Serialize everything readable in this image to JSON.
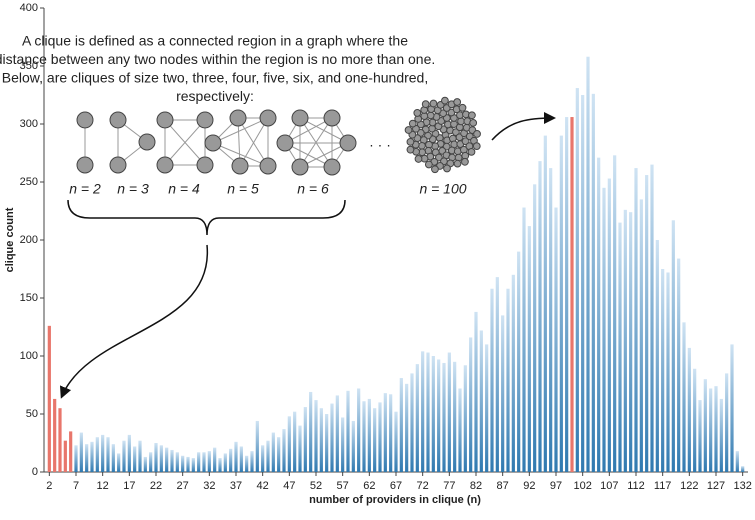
{
  "chart_data": {
    "type": "bar",
    "x": [
      2,
      3,
      4,
      5,
      6,
      7,
      8,
      9,
      10,
      11,
      12,
      13,
      14,
      15,
      16,
      17,
      18,
      19,
      20,
      21,
      22,
      23,
      24,
      25,
      26,
      27,
      28,
      29,
      30,
      31,
      32,
      33,
      34,
      35,
      36,
      37,
      38,
      39,
      40,
      41,
      42,
      43,
      44,
      45,
      46,
      47,
      48,
      49,
      50,
      51,
      52,
      53,
      54,
      55,
      56,
      57,
      58,
      59,
      60,
      61,
      62,
      63,
      64,
      65,
      66,
      67,
      68,
      69,
      70,
      71,
      72,
      73,
      74,
      75,
      76,
      77,
      78,
      79,
      80,
      81,
      82,
      83,
      84,
      85,
      86,
      87,
      88,
      89,
      90,
      91,
      92,
      93,
      94,
      95,
      96,
      97,
      98,
      99,
      100,
      101,
      102,
      103,
      104,
      105,
      106,
      107,
      108,
      109,
      110,
      111,
      112,
      113,
      114,
      115,
      116,
      117,
      118,
      119,
      120,
      121,
      122,
      123,
      124,
      125,
      126,
      127,
      128,
      129,
      130,
      131,
      132
    ],
    "series": [
      {
        "name": "clique count",
        "color": "#7fb3dd",
        "values": [
          126,
          63,
          55,
          27,
          35,
          23,
          34,
          24,
          26,
          30,
          32,
          30,
          24,
          16,
          27,
          32,
          22,
          27,
          13,
          17,
          25,
          23,
          21,
          19,
          17,
          14,
          13,
          12,
          17,
          17,
          18,
          21,
          12,
          16,
          20,
          26,
          22,
          14,
          18,
          44,
          23,
          27,
          34,
          30,
          37,
          48,
          52,
          40,
          56,
          69,
          62,
          55,
          50,
          59,
          66,
          47,
          70,
          44,
          72,
          61,
          63,
          55,
          60,
          68,
          67,
          52,
          81,
          76,
          85,
          93,
          104,
          103,
          100,
          97,
          94,
          103,
          95,
          72,
          92,
          116,
          138,
          122,
          110,
          158,
          168,
          135,
          158,
          170,
          190,
          228,
          212,
          248,
          268,
          290,
          262,
          228,
          290,
          306,
          306,
          331,
          325,
          358,
          326,
          271,
          245,
          253,
          273,
          215,
          226,
          224,
          262,
          235,
          256,
          265,
          200,
          175,
          172,
          217,
          184,
          129,
          107,
          89,
          62,
          80,
          72,
          74,
          63,
          85,
          110,
          18,
          5
        ]
      }
    ],
    "highlight_color": "#e8766b",
    "highlight_x": [
      2,
      3,
      4,
      5,
      6,
      100
    ],
    "xlim": [
      1,
      133
    ],
    "ylim": [
      0,
      400
    ],
    "xticks": [
      2,
      7,
      12,
      17,
      22,
      27,
      32,
      37,
      42,
      47,
      52,
      57,
      62,
      67,
      72,
      77,
      82,
      87,
      92,
      97,
      102,
      107,
      112,
      117,
      122,
      127,
      132
    ],
    "yticks": [
      0,
      50,
      100,
      150,
      200,
      250,
      300,
      350,
      400
    ],
    "xlabel": "number of providers in clique (n)",
    "ylabel": "clique count",
    "annotation": [
      "A clique is defined as a connected region in a graph where the",
      "distance between any two nodes within the region is no more than one.",
      "Below, are cliques of size two, three, four, five, six, and one-hundred,",
      "respectively:"
    ],
    "clique_labels": [
      "n = 2",
      "n = 3",
      "n = 4",
      "n = 5",
      "n = 6",
      "n = 100"
    ],
    "ellipsis": "· · ·"
  }
}
